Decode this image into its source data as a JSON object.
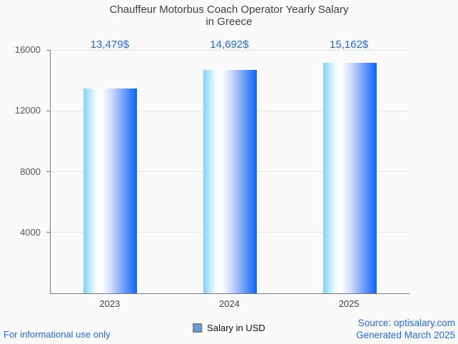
{
  "title": "Chauffeur Motorbus Coach Operator Yearly Salary\nin Greece",
  "chart_data": {
    "type": "bar",
    "categories": [
      "2023",
      "2024",
      "2025"
    ],
    "values": [
      13479,
      14692,
      15162
    ],
    "value_labels": [
      "13,479$",
      "14,692$",
      "15,162$"
    ],
    "series_name": "Salary in USD",
    "title": "Chauffeur Motorbus Coach Operator Yearly Salary in Greece",
    "xlabel": "",
    "ylabel": "",
    "ylim": [
      0,
      16000
    ],
    "yticks": [
      4000,
      8000,
      12000,
      16000
    ],
    "grid": "horizontal",
    "legend_position": "bottom"
  },
  "legend": {
    "label": "Salary in USD",
    "swatch_color": "#5ba0f2"
  },
  "footer": {
    "left": "For informational use only",
    "source": "Source: optisalary.com",
    "generated": "Generated March 2025"
  },
  "colors": {
    "background": "#fafafa",
    "title_text": "#3f3f3f",
    "axis_line": "#7c7c7c",
    "gridline": "#e3e3e3",
    "tick_text": "#565656",
    "accent_blue": "#1f6af2",
    "bar_gradient_left": "#7ed3fc",
    "bar_gradient_mid": "#ffffff",
    "bar_gradient_right": "#0b63f8"
  }
}
